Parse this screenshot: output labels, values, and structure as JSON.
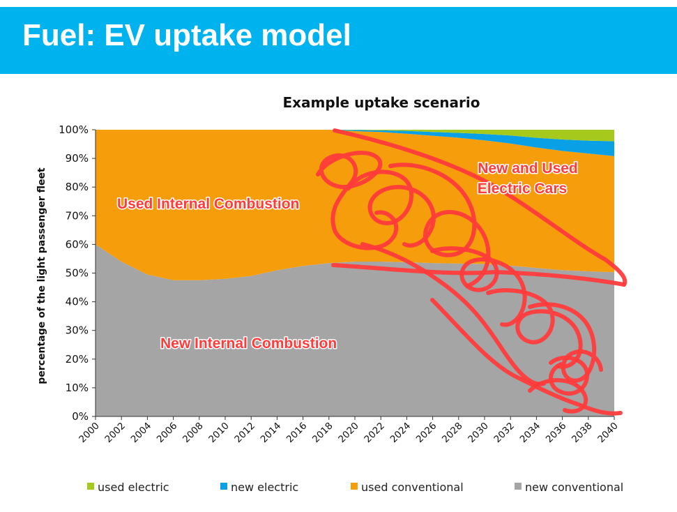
{
  "slide": {
    "title": "Fuel: EV uptake model"
  },
  "colors": {
    "header": "#00b3ee",
    "used_electric": "#a5c91d",
    "new_electric": "#0aa0e6",
    "used_conventional": "#f59d0a",
    "new_conventional": "#a5a5a5",
    "annotation": "#ff3b3b"
  },
  "chart_data": {
    "type": "area",
    "stacked": true,
    "title": "Example uptake scenario",
    "ylabel": "percentage of the light passenger fleet",
    "xlabel": "",
    "ylim": [
      0,
      100
    ],
    "y_ticks": [
      "0%",
      "10%",
      "20%",
      "30%",
      "40%",
      "50%",
      "60%",
      "70%",
      "80%",
      "90%",
      "100%"
    ],
    "x": [
      2000,
      2002,
      2004,
      2006,
      2008,
      2010,
      2012,
      2014,
      2016,
      2018,
      2020,
      2022,
      2024,
      2026,
      2028,
      2030,
      2032,
      2034,
      2036,
      2038,
      2040
    ],
    "x_tick_labels": [
      "2000",
      "2002",
      "2004",
      "2006",
      "2008",
      "2010",
      "2012",
      "2014",
      "2016",
      "2018",
      "2020",
      "2022",
      "2024",
      "2026",
      "2028",
      "2030",
      "2032",
      "2034",
      "2036",
      "2038",
      "2040"
    ],
    "series": [
      {
        "name": "new conventional",
        "values": [
          60,
          54,
          49.5,
          47.5,
          47.5,
          48,
          49,
          51,
          52.5,
          53.5,
          54,
          54,
          53.8,
          53.5,
          53.3,
          53.2,
          52.6,
          51.8,
          51,
          50.6,
          50.3
        ]
      },
      {
        "name": "used conventional",
        "values": [
          40,
          46,
          50.5,
          52.5,
          52.5,
          52,
          51,
          49,
          47.5,
          46.5,
          45.5,
          45.2,
          44.8,
          44.4,
          43.9,
          43.1,
          42.6,
          42,
          41.6,
          41.1,
          40.5
        ]
      },
      {
        "name": "new electric",
        "values": [
          0,
          0,
          0,
          0,
          0,
          0,
          0,
          0,
          0,
          0,
          0.4,
          0.6,
          1,
          1.3,
          1.7,
          2.2,
          2.8,
          3.4,
          4,
          4.5,
          5.2
        ]
      },
      {
        "name": "used electric",
        "values": [
          0,
          0,
          0,
          0,
          0,
          0,
          0,
          0,
          0,
          0,
          0.1,
          0.2,
          0.4,
          0.8,
          1.1,
          1.5,
          2,
          2.8,
          3.4,
          3.8,
          4.0
        ]
      }
    ],
    "legend": {
      "position": "bottom",
      "items": [
        "used electric",
        "new electric",
        "used conventional",
        "new conventional"
      ]
    },
    "annotations": [
      "Used Internal Combustion",
      "New and Used",
      "Electric Cars",
      "New Internal Combustion"
    ]
  }
}
